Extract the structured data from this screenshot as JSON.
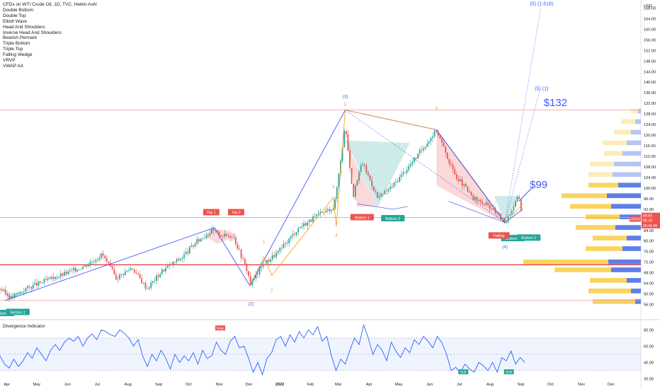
{
  "legend": {
    "items": [
      "CFDs on WTI Crude Oil, 1D, TVC, Heikin Ashi",
      "Double Bottom",
      "Double Top",
      "Elliott Wave",
      "Head And Shoulders",
      "Inverse Head And Shoulders",
      "Bearish Pennant",
      "Triple Bottom",
      "Triple Top",
      "Falling Wedge",
      "VRVP",
      "VWAP AA"
    ]
  },
  "indicator_title": "Divergence Indicator",
  "colors": {
    "up": "#26a69a",
    "down": "#ef5350",
    "wave_blue": "#3d5afe",
    "wave_orange": "#f7a21b",
    "vp_blue": "#5e7fe8",
    "vp_yellow": "#f9d45f",
    "hline_red": "#e53935"
  },
  "chart_data": [
    {
      "type": "candlestick",
      "title": "CFDs on WTI Crude Oil, 1D, TVC, Heikin Ashi",
      "currency": "USD",
      "x_ticks": [
        "Apr",
        "May",
        "Jun",
        "Jul",
        "Aug",
        "Sep",
        "Oct",
        "Nov",
        "Dec",
        "2022",
        "Feb",
        "Mar",
        "Apr",
        "May",
        "Jun",
        "Jul",
        "Aug",
        "Sep",
        "Oct",
        "Nov",
        "Dec"
      ],
      "y_ticks": [
        56,
        60,
        64,
        68,
        72,
        76,
        80,
        84,
        88,
        92,
        96,
        100,
        104,
        108,
        112,
        116,
        120,
        124,
        128,
        132,
        136,
        140,
        144,
        148,
        152,
        156,
        160,
        164,
        168
      ],
      "ylim": [
        54,
        170
      ],
      "price_labels": [
        {
          "text": "88.83",
          "value": 88.83,
          "color": "#ef5350"
        },
        {
          "text": "88.33",
          "value": 88.33,
          "color": "#ef5350"
        },
        {
          "text": "05:45:46",
          "value": 86.9,
          "color": "#ef5350"
        },
        {
          "text": "USOIL",
          "value": 88.33,
          "color": "#ef5350"
        }
      ],
      "close_series": [
        {
          "x": "2021-03-25",
          "y": 62
        },
        {
          "x": "2021-04-05",
          "y": 58.5
        },
        {
          "x": "2021-04-20",
          "y": 62
        },
        {
          "x": "2021-05-10",
          "y": 65
        },
        {
          "x": "2021-06-01",
          "y": 68
        },
        {
          "x": "2021-06-20",
          "y": 71
        },
        {
          "x": "2021-07-06",
          "y": 75
        },
        {
          "x": "2021-07-20",
          "y": 66
        },
        {
          "x": "2021-08-05",
          "y": 70
        },
        {
          "x": "2021-08-20",
          "y": 62
        },
        {
          "x": "2021-09-05",
          "y": 69
        },
        {
          "x": "2021-09-25",
          "y": 74
        },
        {
          "x": "2021-10-10",
          "y": 80
        },
        {
          "x": "2021-10-25",
          "y": 84
        },
        {
          "x": "2021-11-05",
          "y": 82
        },
        {
          "x": "2021-11-15",
          "y": 82
        },
        {
          "x": "2021-11-30",
          "y": 68
        },
        {
          "x": "2021-12-02",
          "y": 63.5
        },
        {
          "x": "2021-12-15",
          "y": 71
        },
        {
          "x": "2021-12-31",
          "y": 76
        },
        {
          "x": "2022-01-20",
          "y": 85
        },
        {
          "x": "2022-02-10",
          "y": 90
        },
        {
          "x": "2022-02-25",
          "y": 93
        },
        {
          "x": "2022-03-08",
          "y": 124
        },
        {
          "x": "2022-03-16",
          "y": 97
        },
        {
          "x": "2022-03-25",
          "y": 110
        },
        {
          "x": "2022-04-10",
          "y": 96
        },
        {
          "x": "2022-04-25",
          "y": 101
        },
        {
          "x": "2022-05-15",
          "y": 110
        },
        {
          "x": "2022-06-08",
          "y": 122
        },
        {
          "x": "2022-06-25",
          "y": 106
        },
        {
          "x": "2022-07-15",
          "y": 96
        },
        {
          "x": "2022-08-01",
          "y": 93
        },
        {
          "x": "2022-08-16",
          "y": 87
        },
        {
          "x": "2022-08-30",
          "y": 97
        },
        {
          "x": "2022-09-03",
          "y": 88.33
        }
      ],
      "h_lines": [
        {
          "value": 129.5,
          "color": "#ef9a9a"
        },
        {
          "value": 88.9,
          "color": "#ef9a9a"
        },
        {
          "value": 71,
          "color": "#e53935"
        },
        {
          "value": 57.5,
          "color": "#ef9a9a"
        }
      ],
      "annotations": [
        {
          "text": "(3)",
          "x": "2022-03-08",
          "y": 134,
          "color": "#3d5afe"
        },
        {
          "text": "5",
          "x": "2022-03-08",
          "y": 131,
          "color": "#f7a21b"
        },
        {
          "text": "b",
          "x": "2022-06-08",
          "y": 129.5,
          "color": "#f7a21b"
        },
        {
          "text": "3",
          "x": "2022-02-24",
          "y": 100,
          "color": "#f7a21b"
        },
        {
          "text": "4",
          "x": "2022-02-27",
          "y": 81.7,
          "color": "#f7a21b"
        },
        {
          "text": "1",
          "x": "2021-12-16",
          "y": 79.2,
          "color": "#f7a21b"
        },
        {
          "text": "2",
          "x": "2021-12-24",
          "y": 60.8,
          "color": "#f7a21b"
        },
        {
          "text": "(2)",
          "x": "2021-12-03",
          "y": 55.8,
          "color": "#3d5afe"
        },
        {
          "text": "(4)",
          "x": "2022-08-16",
          "y": 77.2,
          "color": "#3d5afe"
        },
        {
          "text": "(5) (1.618)",
          "x": "2022-09-22",
          "y": 169,
          "color": "#3d5afe"
        },
        {
          "text": "(5) (1)",
          "x": "2022-09-22",
          "y": 137,
          "color": "#3d5afe"
        },
        {
          "text": "$132",
          "x": "2022-09-24",
          "y": 131,
          "color": "#3d5afe"
        },
        {
          "text": "$99",
          "x": "2022-09-10",
          "y": 100,
          "color": "#3d5afe"
        }
      ],
      "tags": [
        {
          "text": "Top 1",
          "color": "#ef5350",
          "x": "2021-10-24",
          "y": 90.5
        },
        {
          "text": "Top 2",
          "color": "#ef5350",
          "x": "2021-11-18",
          "y": 90.5
        },
        {
          "text": "Bottom 1",
          "color": "#ef5350",
          "x": "2022-03-25",
          "y": 88.6
        },
        {
          "text": "Bottom 2",
          "color": "#26a69a",
          "x": "2022-04-25",
          "y": 88.2
        },
        {
          "text": "Bottom 1",
          "color": "#26a69a",
          "x": "2022-08-24",
          "y": 80.7
        },
        {
          "text": "Bottom 2",
          "color": "#26a69a",
          "x": "2022-09-09",
          "y": 80.9
        },
        {
          "text": "Falling",
          "color": "#ef5350",
          "x": "2022-08-10",
          "y": 81.7
        },
        {
          "text": "Bottom",
          "color": "#26a69a",
          "x": "2021-03-30",
          "y": 52.4
        },
        {
          "text": "Bottom 2",
          "color": "#26a69a",
          "x": "2021-04-12",
          "y": 52.8
        }
      ]
    },
    {
      "type": "line",
      "title": "Divergence Indicator",
      "y_ticks": [
        20,
        40,
        60,
        80
      ],
      "ylim": [
        16,
        90
      ],
      "band": [
        30,
        70
      ],
      "mid": 50,
      "series": [
        {
          "values": [
            48,
            38,
            33,
            44,
            35,
            42,
            52,
            45,
            58,
            50,
            42,
            55,
            62,
            55,
            65,
            70,
            66,
            72,
            60,
            70,
            75,
            68,
            80,
            78,
            74,
            72,
            80,
            76,
            70,
            60,
            68,
            48,
            35,
            50,
            42,
            55,
            45,
            32,
            50,
            40,
            48,
            42,
            52,
            38,
            55,
            45,
            48,
            65,
            55,
            50,
            66,
            72,
            58,
            60,
            45,
            28,
            40,
            25,
            45,
            52,
            68,
            72,
            60,
            74,
            65,
            78,
            70,
            80,
            74,
            84,
            66,
            72,
            48,
            30,
            44,
            38,
            55,
            70,
            62,
            86,
            70,
            50,
            62,
            55,
            42,
            65,
            54,
            46,
            58,
            52,
            68,
            62,
            72,
            66,
            58,
            72,
            64,
            50,
            30,
            34,
            28,
            38,
            32,
            28,
            40,
            36,
            30,
            40,
            28,
            46,
            42,
            54,
            38,
            46,
            40
          ]
        }
      ],
      "tags": [
        {
          "text": "Bear",
          "color": "#ef5350",
          "value": 82
        },
        {
          "text": "Bull",
          "color": "#26a69a",
          "value": 28
        },
        {
          "text": "Bull",
          "color": "#26a69a",
          "value": 28
        }
      ]
    }
  ]
}
